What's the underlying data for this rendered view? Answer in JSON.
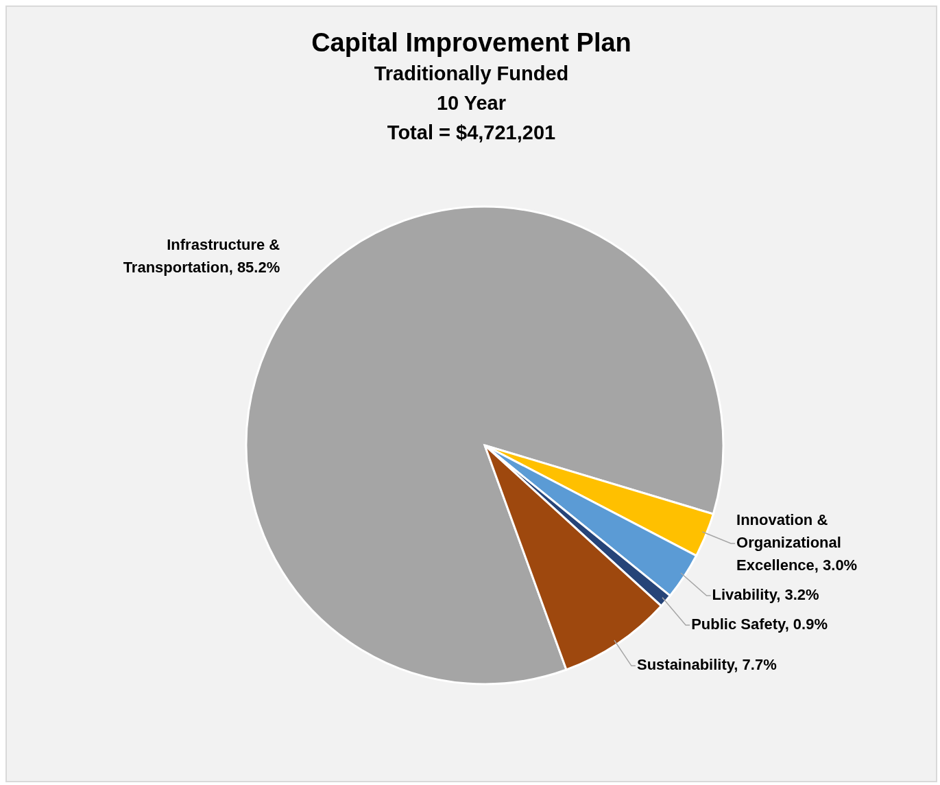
{
  "chart_data": {
    "type": "pie",
    "title": "Capital Improvement Plan",
    "subtitle": "Traditionally Funded\n10 Year",
    "annotations": [
      "Total = $4,721,201"
    ],
    "categories": [
      "Infrastructure & Transportation",
      "Innovation & Organizational Excellence",
      "Livability",
      "Public Safety",
      "Sustainability"
    ],
    "values": [
      85.2,
      3.0,
      3.2,
      0.9,
      7.7
    ],
    "value_labels": [
      "85.2%",
      "3.0%",
      "3.2%",
      "0.9%",
      "7.7%"
    ],
    "colors": [
      "#a5a5a5",
      "#ffc000",
      "#5b9bd5",
      "#264478",
      "#9e480e"
    ],
    "legend": false
  }
}
